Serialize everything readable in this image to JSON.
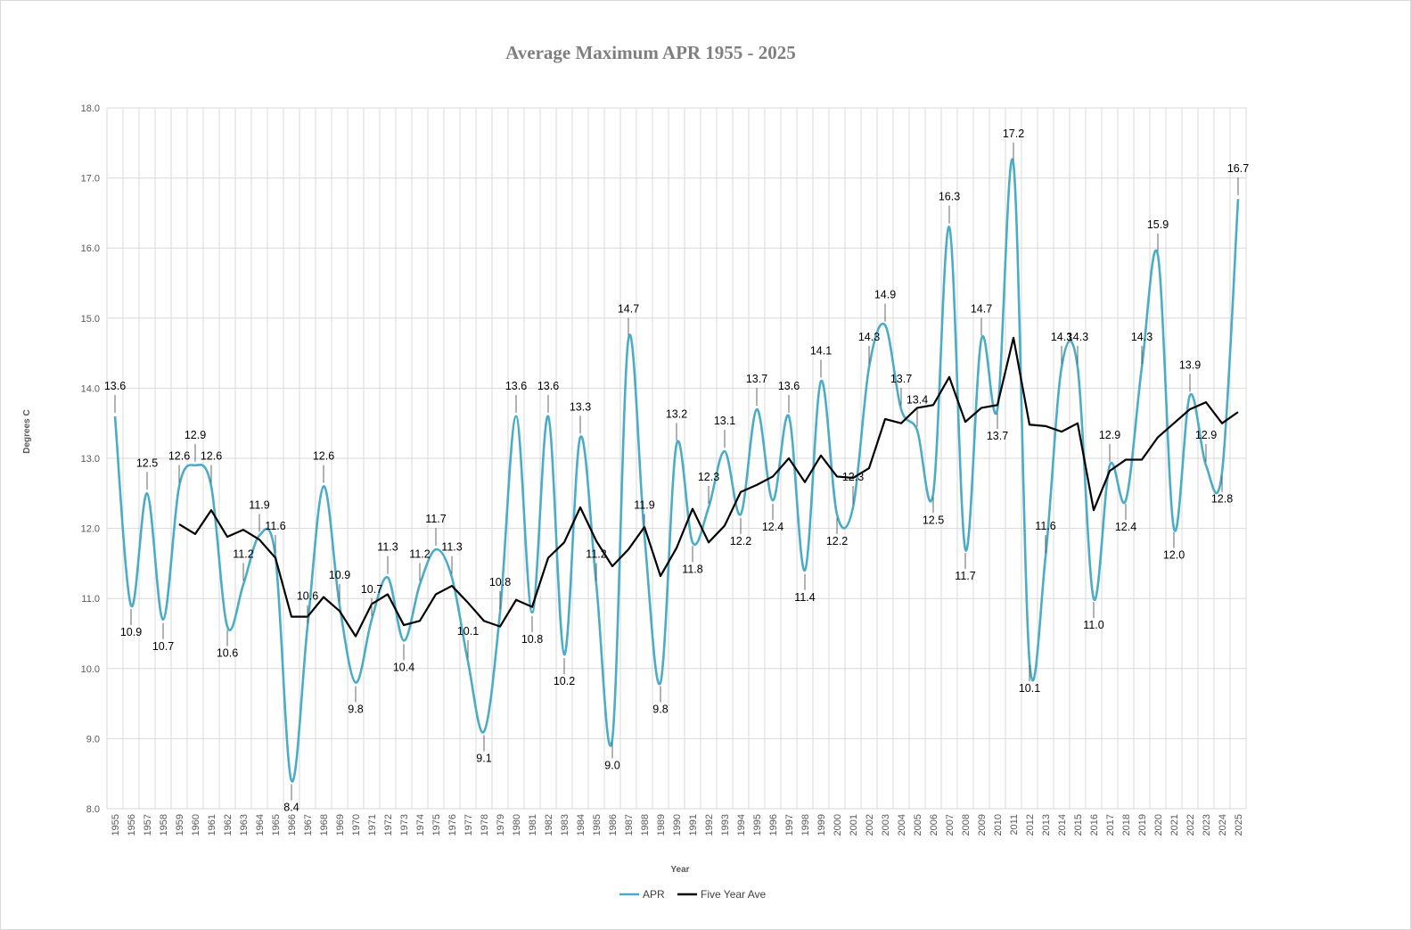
{
  "chart_data": {
    "type": "line",
    "title": "Average Maximum APR 1955 - 2025",
    "xlabel": "Year",
    "ylabel": "Degrees C",
    "ylim": [
      8.0,
      18.0
    ],
    "y_ticks": [
      "8.0",
      "9.0",
      "10.0",
      "11.0",
      "12.0",
      "13.0",
      "14.0",
      "15.0",
      "16.0",
      "17.0",
      "18.0"
    ],
    "grid": true,
    "legend_position": "bottom",
    "x": [
      1955,
      1956,
      1957,
      1958,
      1959,
      1960,
      1961,
      1962,
      1963,
      1964,
      1965,
      1966,
      1967,
      1968,
      1969,
      1970,
      1971,
      1972,
      1973,
      1974,
      1975,
      1976,
      1977,
      1978,
      1979,
      1980,
      1981,
      1982,
      1983,
      1984,
      1985,
      1986,
      1987,
      1988,
      1989,
      1990,
      1991,
      1992,
      1993,
      1994,
      1995,
      1996,
      1997,
      1998,
      1999,
      2000,
      2001,
      2002,
      2003,
      2004,
      2005,
      2006,
      2007,
      2008,
      2009,
      2010,
      2011,
      2012,
      2013,
      2014,
      2015,
      2016,
      2017,
      2018,
      2019,
      2020,
      2021,
      2022,
      2023,
      2024,
      2025
    ],
    "series": [
      {
        "name": "APR",
        "color": "#4bacc6",
        "smooth": true,
        "values": [
          13.6,
          10.9,
          12.5,
          10.7,
          12.6,
          12.9,
          12.6,
          10.6,
          11.2,
          11.9,
          11.6,
          8.4,
          10.6,
          12.6,
          10.9,
          9.8,
          10.7,
          11.3,
          10.4,
          11.2,
          11.7,
          11.3,
          10.1,
          9.1,
          10.8,
          13.6,
          10.8,
          13.6,
          10.2,
          13.3,
          11.2,
          9.0,
          14.7,
          11.9,
          9.8,
          13.2,
          11.8,
          12.3,
          13.1,
          12.2,
          13.7,
          12.4,
          13.6,
          11.4,
          14.1,
          12.2,
          12.3,
          14.3,
          14.9,
          13.7,
          13.4,
          12.5,
          16.3,
          11.7,
          14.7,
          13.7,
          17.2,
          10.1,
          11.6,
          14.3,
          14.3,
          11.0,
          12.9,
          12.4,
          14.3,
          15.9,
          12.0,
          13.9,
          12.9,
          12.8,
          16.7
        ],
        "labels": [
          "13.6",
          "10.9",
          "12.5",
          "10.7",
          "12.6",
          "12.9",
          "12.6",
          "10.6",
          "11.2",
          "11.9",
          "11.6",
          "8.4",
          "10.6",
          "12.6",
          "10.9",
          "9.8",
          "10.7",
          "11.3",
          "10.4",
          "11.2",
          "11.7",
          "11.3",
          "10.1",
          "9.1",
          "10.8",
          "13.6",
          "10.8",
          "13.6",
          "10.2",
          "13.3",
          "11.2",
          "9.0",
          "14.7",
          "11.9",
          "9.8",
          "13.2",
          "11.8",
          "12.3",
          "13.1",
          "12.2",
          "13.7",
          "12.4",
          "13.6",
          "11.4",
          "14.1",
          "12.2",
          "12.3",
          "14.3",
          "14.9",
          "13.7",
          "13.4",
          "12.5",
          "16.3",
          "11.7",
          "14.7",
          "13.7",
          "17.2",
          "10.1",
          "11.6",
          "14.3",
          "14.3",
          "11.0",
          "12.9",
          "12.4",
          "14.3",
          "15.9",
          "12.0",
          "13.9",
          "12.9",
          "12.8",
          "16.7"
        ]
      },
      {
        "name": "Five Year Ave",
        "color": "#000000",
        "smooth": false,
        "values": [
          null,
          null,
          null,
          null,
          12.06,
          11.92,
          12.26,
          11.88,
          11.98,
          11.84,
          11.58,
          10.74,
          10.74,
          11.02,
          10.82,
          10.46,
          10.92,
          11.06,
          10.62,
          10.68,
          11.06,
          11.18,
          10.94,
          10.68,
          10.6,
          10.98,
          10.88,
          11.58,
          11.8,
          12.3,
          11.82,
          11.46,
          11.7,
          12.02,
          11.32,
          11.72,
          12.28,
          11.8,
          12.04,
          12.52,
          12.62,
          12.74,
          13.0,
          12.66,
          13.04,
          12.74,
          12.72,
          12.86,
          13.56,
          13.5,
          13.72,
          13.76,
          14.16,
          13.52,
          13.72,
          13.76,
          14.72,
          13.48,
          13.46,
          13.38,
          13.5,
          12.26,
          12.82,
          12.98,
          12.98,
          13.3,
          13.5,
          13.7,
          13.8,
          13.5,
          13.66
        ]
      }
    ]
  }
}
